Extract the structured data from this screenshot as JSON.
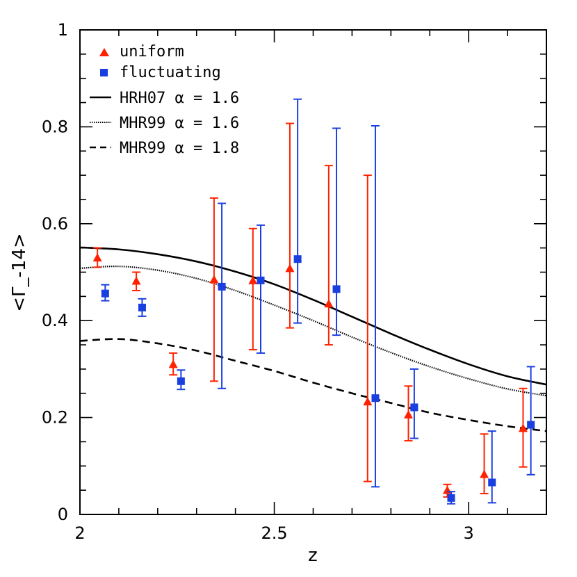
{
  "chart_data": {
    "type": "scatter",
    "title": "",
    "xlabel": "z",
    "ylabel": "<Γ_-14>",
    "xlim": [
      2,
      3.2
    ],
    "ylim": [
      0,
      1
    ],
    "x_ticks": [
      2,
      2.5,
      3
    ],
    "x_tick_labels": [
      "2",
      "2.5",
      "3"
    ],
    "y_ticks": [
      0,
      0.2,
      0.4,
      0.6,
      0.8,
      1
    ],
    "y_tick_labels": [
      "0",
      "0.2",
      "0.4",
      "0.6",
      "0.8",
      "1"
    ],
    "legend_position": "top-left",
    "colors": {
      "uniform": "#ff2200",
      "fluctuating": "#1a3fe0",
      "lines": "#000000"
    },
    "legend": {
      "uniform": "uniform",
      "fluctuating": "fluctuating",
      "hrh07_16": "HRH07  α  =  1.6",
      "mhr99_16": "MHR99  α  =  1.6",
      "mhr99_18": "MHR99  α  =  1.8"
    },
    "series": [
      {
        "name": "uniform",
        "marker": "triangle",
        "points": [
          {
            "x": 2.045,
            "y": 0.53,
            "lo": 0.51,
            "hi": 0.55
          },
          {
            "x": 2.145,
            "y": 0.482,
            "lo": 0.462,
            "hi": 0.5
          },
          {
            "x": 2.24,
            "y": 0.31,
            "lo": 0.288,
            "hi": 0.333
          },
          {
            "x": 2.345,
            "y": 0.485,
            "lo": 0.275,
            "hi": 0.653
          },
          {
            "x": 2.445,
            "y": 0.483,
            "lo": 0.34,
            "hi": 0.59
          },
          {
            "x": 2.54,
            "y": 0.508,
            "lo": 0.385,
            "hi": 0.807
          },
          {
            "x": 2.64,
            "y": 0.435,
            "lo": 0.35,
            "hi": 0.72
          },
          {
            "x": 2.74,
            "y": 0.233,
            "lo": 0.068,
            "hi": 0.7
          },
          {
            "x": 2.845,
            "y": 0.206,
            "lo": 0.152,
            "hi": 0.265
          },
          {
            "x": 2.945,
            "y": 0.05,
            "lo": 0.036,
            "hi": 0.062
          },
          {
            "x": 3.04,
            "y": 0.083,
            "lo": 0.043,
            "hi": 0.166
          },
          {
            "x": 3.14,
            "y": 0.178,
            "lo": 0.098,
            "hi": 0.26
          }
        ]
      },
      {
        "name": "fluctuating",
        "marker": "square",
        "points": [
          {
            "x": 2.065,
            "y": 0.456,
            "lo": 0.441,
            "hi": 0.474
          },
          {
            "x": 2.16,
            "y": 0.427,
            "lo": 0.409,
            "hi": 0.445
          },
          {
            "x": 2.26,
            "y": 0.275,
            "lo": 0.258,
            "hi": 0.298
          },
          {
            "x": 2.365,
            "y": 0.47,
            "lo": 0.26,
            "hi": 0.642
          },
          {
            "x": 2.465,
            "y": 0.483,
            "lo": 0.333,
            "hi": 0.597
          },
          {
            "x": 2.56,
            "y": 0.527,
            "lo": 0.395,
            "hi": 0.857
          },
          {
            "x": 2.66,
            "y": 0.465,
            "lo": 0.37,
            "hi": 0.797
          },
          {
            "x": 2.76,
            "y": 0.24,
            "lo": 0.057,
            "hi": 0.802
          },
          {
            "x": 2.86,
            "y": 0.221,
            "lo": 0.157,
            "hi": 0.3
          },
          {
            "x": 2.955,
            "y": 0.034,
            "lo": 0.022,
            "hi": 0.047
          },
          {
            "x": 3.06,
            "y": 0.066,
            "lo": 0.024,
            "hi": 0.172
          },
          {
            "x": 3.16,
            "y": 0.185,
            "lo": 0.082,
            "hi": 0.305
          }
        ]
      }
    ],
    "lines": [
      {
        "name": "HRH07 α = 1.6",
        "style": "solid",
        "x": [
          2.0,
          2.1,
          2.2,
          2.3,
          2.4,
          2.5,
          2.6,
          2.7,
          2.8,
          2.9,
          3.0,
          3.1,
          3.2
        ],
        "y": [
          0.551,
          0.547,
          0.537,
          0.522,
          0.501,
          0.475,
          0.443,
          0.408,
          0.373,
          0.34,
          0.31,
          0.285,
          0.268
        ]
      },
      {
        "name": "MHR99 α = 1.6",
        "style": "dotted",
        "x": [
          2.0,
          2.1,
          2.2,
          2.3,
          2.4,
          2.5,
          2.6,
          2.7,
          2.8,
          2.9,
          3.0,
          3.1,
          3.2
        ],
        "y": [
          0.508,
          0.512,
          0.504,
          0.487,
          0.462,
          0.432,
          0.4,
          0.366,
          0.334,
          0.305,
          0.28,
          0.259,
          0.245
        ]
      },
      {
        "name": "MHR99 α = 1.8",
        "style": "dashed",
        "x": [
          2.0,
          2.1,
          2.2,
          2.3,
          2.4,
          2.5,
          2.6,
          2.7,
          2.8,
          2.9,
          3.0,
          3.1,
          3.2
        ],
        "y": [
          0.358,
          0.362,
          0.353,
          0.338,
          0.317,
          0.296,
          0.272,
          0.25,
          0.23,
          0.21,
          0.195,
          0.182,
          0.172
        ]
      }
    ]
  }
}
